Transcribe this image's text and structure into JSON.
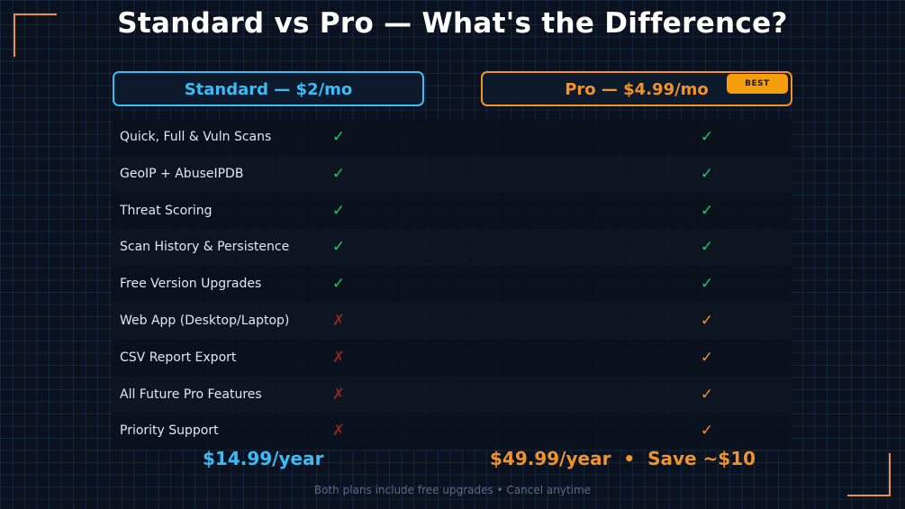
{
  "title": "Standard vs Pro — What's the Difference?",
  "plans": {
    "standard": {
      "label": "Standard — $2/mo",
      "color": "#38bdf8"
    },
    "pro": {
      "label": "Pro — $4.99/mo",
      "badge": "BEST",
      "color": "#f0932b"
    }
  },
  "features": [
    {
      "name": "Quick, Full & Vuln Scans",
      "standard": "✓",
      "standard_status": "green",
      "pro": "✓",
      "pro_status": "green"
    },
    {
      "name": "GeoIP + AbuseIPDB",
      "standard": "✓",
      "standard_status": "green",
      "pro": "✓",
      "pro_status": "green"
    },
    {
      "name": "Threat Scoring",
      "standard": "✓",
      "standard_status": "green",
      "pro": "✓",
      "pro_status": "green"
    },
    {
      "name": "Scan History & Persistence",
      "standard": "✓",
      "standard_status": "green",
      "pro": "✓",
      "pro_status": "green"
    },
    {
      "name": "Free Version Upgrades",
      "standard": "✓",
      "standard_status": "green",
      "pro": "✓",
      "pro_status": "green"
    },
    {
      "name": "Web App (Desktop/Laptop)",
      "standard": "✗",
      "standard_status": "red",
      "pro": "✓",
      "pro_status": "orange"
    },
    {
      "name": "CSV Report Export",
      "standard": "✗",
      "standard_status": "red",
      "pro": "✓",
      "pro_status": "orange"
    },
    {
      "name": "All Future Pro Features",
      "standard": "✗",
      "standard_status": "red",
      "pro": "✓",
      "pro_status": "orange"
    },
    {
      "name": "Priority Support",
      "standard": "✗",
      "standard_status": "red",
      "pro": "✓",
      "pro_status": "orange"
    }
  ],
  "pricing": {
    "standard_yearly": "$14.99/year",
    "pro_yearly": "$49.99/year  •  Save ~$10"
  },
  "footer": "Both plans include free upgrades  •  Cancel anytime",
  "colors": {
    "green": "#22c55e",
    "red": "#8b2a22",
    "orange": "#f0932b",
    "accent_blue": "#38bdf8"
  }
}
